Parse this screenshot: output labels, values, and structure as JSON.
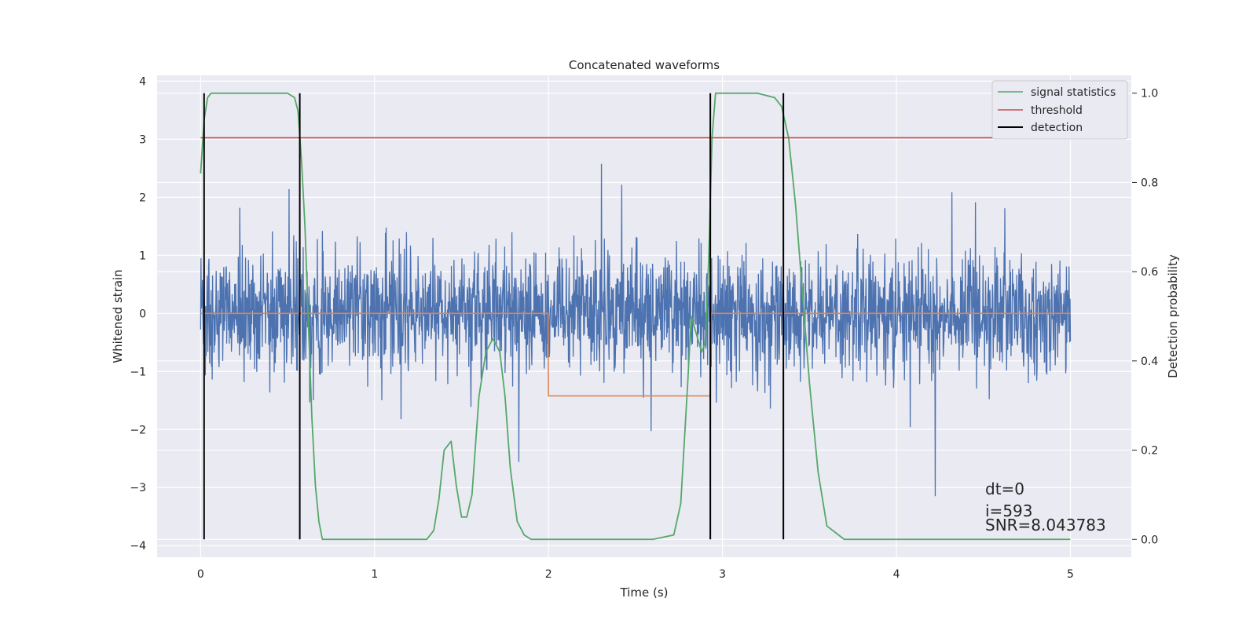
{
  "chart_data": {
    "type": "line",
    "title": "Concatenated waveforms",
    "xlabel": "Time (s)",
    "ylabel_left": "Whitened strain",
    "ylabel_right": "Detection probability",
    "xlim": [
      -0.25,
      5.35
    ],
    "ylim_left": [
      -4.2,
      4.1
    ],
    "ylim_right": [
      -0.04,
      1.04
    ],
    "x_ticks": [
      0,
      1,
      2,
      3,
      4,
      5
    ],
    "y_ticks_left": [
      -4,
      -3,
      -2,
      -1,
      0,
      1,
      2,
      3,
      4
    ],
    "y_ticks_right": [
      0.0,
      0.2,
      0.4,
      0.6,
      0.8,
      1.0
    ],
    "y_tick_labels_left": [
      "−4",
      "−3",
      "−2",
      "−1",
      "0",
      "1",
      "2",
      "3",
      "4"
    ],
    "y_tick_labels_right": [
      "0.0",
      "0.2",
      "0.4",
      "0.6",
      "0.8",
      "1.0"
    ],
    "grid": true,
    "legend_position": "top-right",
    "colors": {
      "background": "#eaeaf2",
      "grid": "#ffffff",
      "strain": "#4c72b0",
      "template": "#dd8452",
      "statistics": "#55a868",
      "threshold": "#c44e52",
      "detection": "#000000"
    },
    "series": [
      {
        "name": "signal statistics",
        "axis": "right",
        "x": [
          0.0,
          0.02,
          0.04,
          0.06,
          0.1,
          0.2,
          0.3,
          0.4,
          0.5,
          0.54,
          0.56,
          0.58,
          0.6,
          0.62,
          0.64,
          0.66,
          0.68,
          0.7,
          1.0,
          1.3,
          1.34,
          1.37,
          1.4,
          1.44,
          1.47,
          1.5,
          1.53,
          1.56,
          1.6,
          1.64,
          1.68,
          1.72,
          1.75,
          1.78,
          1.82,
          1.86,
          1.9,
          2.2,
          2.6,
          2.72,
          2.76,
          2.8,
          2.82,
          2.85,
          2.88,
          2.9,
          2.92,
          2.94,
          2.96,
          3.0,
          3.1,
          3.2,
          3.3,
          3.34,
          3.38,
          3.42,
          3.46,
          3.5,
          3.55,
          3.6,
          3.7,
          3.8,
          4.0,
          4.1,
          4.3,
          4.6,
          5.0
        ],
        "y": [
          0.82,
          0.94,
          0.99,
          1.0,
          1.0,
          1.0,
          1.0,
          1.0,
          1.0,
          0.99,
          0.96,
          0.85,
          0.7,
          0.48,
          0.27,
          0.12,
          0.04,
          0.0,
          0.0,
          0.0,
          0.02,
          0.09,
          0.2,
          0.22,
          0.12,
          0.05,
          0.05,
          0.1,
          0.32,
          0.42,
          0.45,
          0.42,
          0.32,
          0.16,
          0.04,
          0.01,
          0.0,
          0.0,
          0.0,
          0.01,
          0.08,
          0.35,
          0.5,
          0.46,
          0.42,
          0.44,
          0.62,
          0.9,
          1.0,
          1.0,
          1.0,
          1.0,
          0.99,
          0.97,
          0.9,
          0.75,
          0.55,
          0.35,
          0.15,
          0.03,
          0.0,
          0.0,
          0.0,
          0.0,
          0.0,
          0.0,
          0.0
        ]
      },
      {
        "name": "threshold",
        "axis": "right",
        "x": [
          0.0,
          5.1
        ],
        "y": [
          0.9,
          0.9
        ]
      },
      {
        "name": "detection",
        "axis": "right",
        "x": [
          0.02,
          0.57,
          2.93,
          3.35
        ],
        "y0": 0.0,
        "y1": 1.0
      }
    ],
    "annotations": [
      "dt=0",
      "i=593",
      "SNR=8.043783"
    ]
  }
}
